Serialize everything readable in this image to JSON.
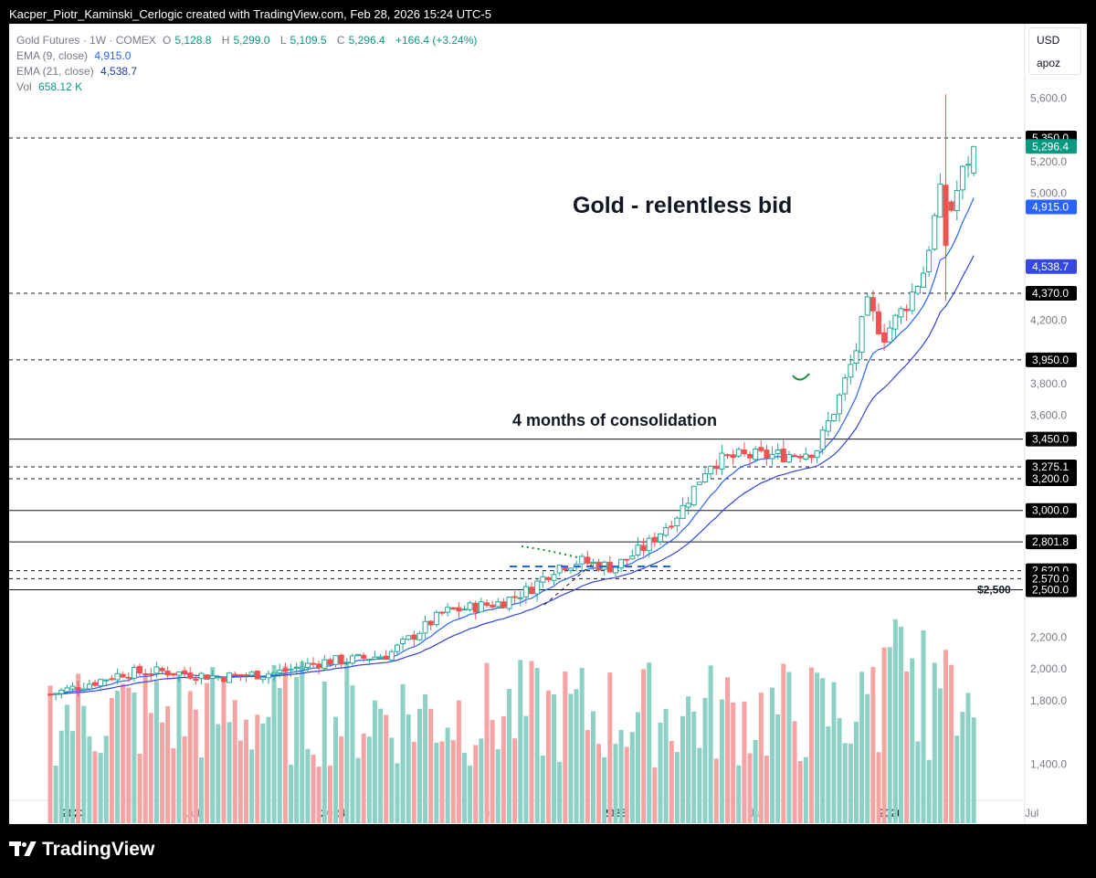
{
  "header": {
    "credit": "Kacper_Piotr_Kaminski_Cerlogic created with TradingView.com, Feb 28, 2026 15:24 UTC-5"
  },
  "legend": {
    "symbol": "Gold Futures · 1W · COMEX",
    "o_label": "O",
    "o_value": "5,128.8",
    "h_label": "H",
    "h_value": "5,299.0",
    "l_label": "L",
    "l_value": "5,109.5",
    "c_label": "C",
    "c_value": "5,296.4",
    "change": "+166.4 (+3.24%)",
    "ema9_label": "EMA (9, close)",
    "ema9_value": "4,915.0",
    "ema21_label": "EMA (21, close)",
    "ema21_value": "4,538.7",
    "vol_label": "Vol",
    "vol_value": "658.12 K"
  },
  "currency": {
    "code": "USD",
    "unit": "apoz"
  },
  "brand": {
    "name": "TradingView"
  },
  "colors": {
    "up": "#26a69a",
    "down": "#ef5350",
    "vol_up": "#8dd0c6",
    "vol_down": "#f5a3a3",
    "ema9": "#2962ff",
    "ema21": "#3444d6",
    "last_price_bg": "#089981",
    "ema9_bg": "#2962ff",
    "ema21_bg": "#3448e0",
    "level_bg": "#000000",
    "annotation_green": "#1e8b3a",
    "annotation_blue": "#2962ff"
  },
  "chart_data": {
    "type": "candlestick",
    "instrument": "Gold Futures",
    "timeframe": "1W",
    "exchange": "COMEX",
    "ylim": [
      1300,
      5700
    ],
    "y_ticks": [
      1400,
      1600,
      1800,
      2000,
      2200,
      2400,
      2600,
      2800,
      3000,
      3200,
      3400,
      3600,
      3800,
      4000,
      4200,
      4400,
      4600,
      4800,
      5000,
      5200,
      5400,
      5600
    ],
    "y_ticks_visible": [
      "1,400.0",
      "1,800.0",
      "2,000.0",
      "2,200.0",
      "3,600.0",
      "3,800.0",
      "4,200.0",
      "5,000.0",
      "5,200.0",
      "5,600.0"
    ],
    "x_ticks": [
      {
        "label": "2023",
        "pos": 0.04,
        "bold": true
      },
      {
        "label": "Jul",
        "pos": 0.26,
        "bold": false
      },
      {
        "label": "2024",
        "pos": 0.5,
        "bold": true
      },
      {
        "label": "Jul",
        "pos": 0.78,
        "bold": false
      },
      {
        "label": "2025",
        "pos": 1.0,
        "bold": true
      },
      {
        "label": "Jul",
        "pos": 1.26,
        "bold": false
      },
      {
        "label": "2026",
        "pos": 1.49,
        "bold": true
      },
      {
        "label": "Jul",
        "pos": 1.75,
        "bold": false
      }
    ],
    "weekly_close_keypoints": [
      [
        0.0,
        1840
      ],
      [
        0.08,
        1920
      ],
      [
        0.13,
        1975
      ],
      [
        0.2,
        1985
      ],
      [
        0.3,
        1950
      ],
      [
        0.4,
        1975
      ],
      [
        0.48,
        2045
      ],
      [
        0.54,
        2060
      ],
      [
        0.6,
        2090
      ],
      [
        0.7,
        2360
      ],
      [
        0.8,
        2420
      ],
      [
        0.85,
        2500
      ],
      [
        0.9,
        2650
      ],
      [
        0.94,
        2680
      ],
      [
        1.0,
        2640
      ],
      [
        1.06,
        2780
      ],
      [
        1.12,
        3000
      ],
      [
        1.17,
        3300
      ],
      [
        1.22,
        3340
      ],
      [
        1.3,
        3350
      ],
      [
        1.36,
        3380
      ],
      [
        1.4,
        3700
      ],
      [
        1.43,
        4000
      ],
      [
        1.45,
        4300
      ],
      [
        1.48,
        4100
      ],
      [
        1.52,
        4300
      ],
      [
        1.55,
        4500
      ],
      [
        1.58,
        5000
      ],
      [
        1.6,
        4900
      ],
      [
        1.62,
        5130
      ],
      [
        1.64,
        5296.4
      ]
    ],
    "last_candle": {
      "open": 5128.8,
      "high": 5299.0,
      "low": 5109.5,
      "close": 5296.4,
      "change": 166.4,
      "change_pct": 3.24
    },
    "peak_high": 5626,
    "ema9_last": 4915.0,
    "ema21_last": 4538.7,
    "volume_last": "658.12 K",
    "horizontal_levels": [
      {
        "value": 5350.0,
        "label": "5,350.0",
        "style": "dashed"
      },
      {
        "value": 4370.0,
        "label": "4,370.0",
        "style": "dashed"
      },
      {
        "value": 3950.0,
        "label": "3,950.0",
        "style": "dashed"
      },
      {
        "value": 3450.0,
        "label": "3,450.0",
        "style": "solid"
      },
      {
        "value": 3275.1,
        "label": "3,275.1",
        "style": "dashed"
      },
      {
        "value": 3200.0,
        "label": "3,200.0",
        "style": "dashed"
      },
      {
        "value": 3000.0,
        "label": "3,000.0",
        "style": "solid"
      },
      {
        "value": 2801.8,
        "label": "2,801.8",
        "style": "solid"
      },
      {
        "value": 2620.0,
        "label": "2,620.0",
        "style": "dashed"
      },
      {
        "value": 2570.0,
        "label": "2,570.0",
        "style": "dashed"
      },
      {
        "value": 2500.0,
        "label": "2,500.0",
        "style": "solid"
      }
    ],
    "price_tags": [
      {
        "value": 5296.4,
        "label": "5,296.4",
        "kind": "last"
      },
      {
        "value": 4915.0,
        "label": "4,915.0",
        "kind": "ema9"
      },
      {
        "value": 4538.7,
        "label": "4,538.7",
        "kind": "ema21"
      }
    ],
    "level_text_marker": {
      "value": 2500,
      "label": "$2,500"
    },
    "annotations": [
      {
        "text": "Gold - relentless bid",
        "x": 1.64,
        "y": 5000
      },
      {
        "text": "4 months of consolidation",
        "x": 1.22,
        "y": 3600
      }
    ]
  }
}
